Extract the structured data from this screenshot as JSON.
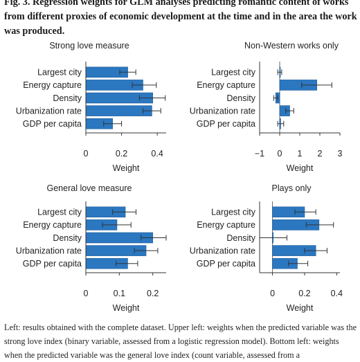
{
  "figure_caption": "Fig. 3. Regression weights for GLM analyses predicting romantic content of works from different proxies of economic development at the time and in the area the work was produced.",
  "description_text": "Left: results obtained with the complete dataset. Upper left: weights when the predicted variable was the strong love index (binary variable, assessed from a logistic regression model). Bottom left: weights when the predicted variable was the general love index (count variable, assessed from a",
  "colors": {
    "bar": "#2b77c0",
    "bar_edge": "#1e5c99",
    "axis": "#333333",
    "errorbar": "#333333",
    "zero_line": "#666666"
  },
  "chart_data": [
    {
      "type": "bar",
      "orientation": "horizontal",
      "title": "Strong love measure",
      "xlabel": "Weight",
      "categories": [
        "Largest city",
        "Energy capture",
        "Density",
        "Urbanization rate",
        "GDP per capita"
      ],
      "values": [
        0.235,
        0.32,
        0.375,
        0.37,
        0.15
      ],
      "error_low": [
        0.19,
        0.26,
        0.3,
        0.32,
        0.1
      ],
      "error_high": [
        0.28,
        0.395,
        0.445,
        0.42,
        0.2
      ],
      "xlim": [
        0,
        0.45
      ],
      "xticks": [
        0,
        0.2,
        0.4
      ],
      "xtick_labels": [
        "0",
        "0.2",
        "0.4"
      ]
    },
    {
      "type": "bar",
      "orientation": "horizontal",
      "title": "Non-Western works only",
      "xlabel": "Weight",
      "categories": [
        "Largest city",
        "Energy capture",
        "Density",
        "Urbanization rate",
        "GDP per capita"
      ],
      "values": [
        0.0,
        1.85,
        -0.2,
        0.5,
        0.05
      ],
      "error_low": [
        -0.1,
        1.1,
        -0.3,
        0.3,
        -0.1
      ],
      "error_high": [
        0.1,
        2.6,
        -0.1,
        0.7,
        0.2
      ],
      "xlim": [
        -1,
        3
      ],
      "xticks": [
        -1,
        0,
        1,
        2,
        3
      ],
      "xtick_labels": [
        "−1",
        "0",
        "1",
        "2",
        "3"
      ],
      "zero_line": true
    },
    {
      "type": "bar",
      "orientation": "horizontal",
      "title": "General love measure",
      "xlabel": "Weight",
      "categories": [
        "Largest city",
        "Energy capture",
        "Density",
        "Urbanization rate",
        "GDP per capita"
      ],
      "values": [
        0.118,
        0.093,
        0.2,
        0.18,
        0.125
      ],
      "error_low": [
        0.08,
        0.05,
        0.165,
        0.145,
        0.09
      ],
      "error_high": [
        0.15,
        0.135,
        0.24,
        0.215,
        0.155
      ],
      "xlim": [
        0,
        0.24
      ],
      "xticks": [
        0,
        0.1,
        0.2
      ],
      "xtick_labels": [
        "0",
        "0.1",
        "0.2"
      ]
    },
    {
      "type": "bar",
      "orientation": "horizontal",
      "title": "Plays only",
      "xlabel": "Weight",
      "categories": [
        "Largest city",
        "Energy capture",
        "Density",
        "Urbanization rate",
        "GDP per capita"
      ],
      "values": [
        0.2,
        0.29,
        0.005,
        0.27,
        0.155
      ],
      "error_low": [
        0.14,
        0.21,
        -0.08,
        0.2,
        0.1
      ],
      "error_high": [
        0.27,
        0.38,
        0.09,
        0.34,
        0.22
      ],
      "xlim": [
        -0.08,
        0.42
      ],
      "xticks": [
        0,
        0.2,
        0.4
      ],
      "xtick_labels": [
        "0",
        "0.2",
        "0.4"
      ],
      "zero_line": true
    }
  ]
}
